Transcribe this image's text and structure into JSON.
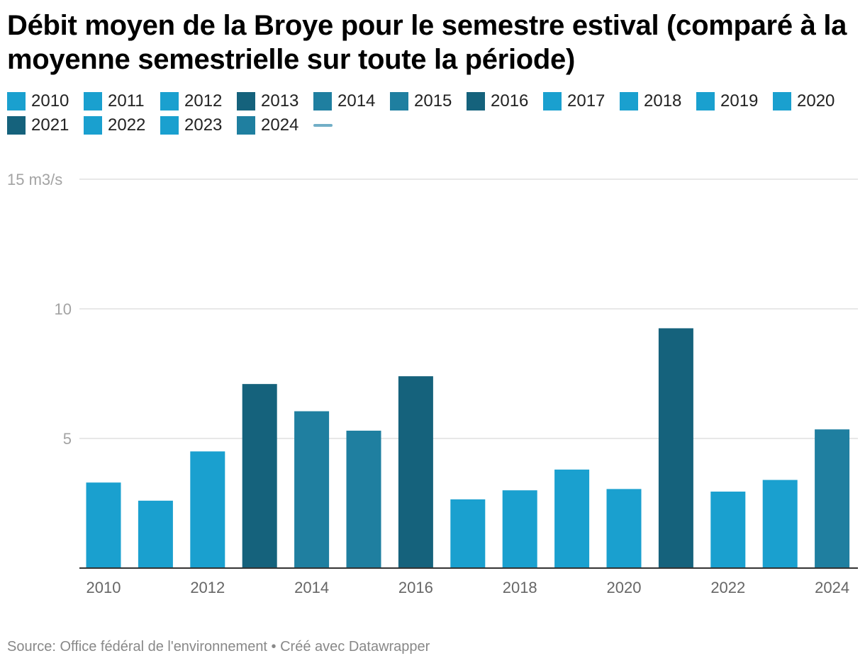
{
  "title": "Débit moyen de la Broye pour le semestre estival (comparé à la moyenne semestrielle sur toute la période)",
  "source": "Source: Office fédéral de l'environnement • Créé avec Datawrapper",
  "colors": {
    "light": "#1aa0cf",
    "medium": "#1f7fa0",
    "dark": "#15627c",
    "mean_line": "#72afc7"
  },
  "legend": [
    {
      "label": "2010",
      "color": "#1aa0cf"
    },
    {
      "label": "2011",
      "color": "#1aa0cf"
    },
    {
      "label": "2012",
      "color": "#1aa0cf"
    },
    {
      "label": "2013",
      "color": "#15627c"
    },
    {
      "label": "2014",
      "color": "#1f7fa0"
    },
    {
      "label": "2015",
      "color": "#1f7fa0"
    },
    {
      "label": "2016",
      "color": "#15627c"
    },
    {
      "label": "2017",
      "color": "#1aa0cf"
    },
    {
      "label": "2018",
      "color": "#1aa0cf"
    },
    {
      "label": "2019",
      "color": "#1aa0cf"
    },
    {
      "label": "2020",
      "color": "#1aa0cf"
    },
    {
      "label": "2021",
      "color": "#15627c"
    },
    {
      "label": "2022",
      "color": "#1aa0cf"
    },
    {
      "label": "2023",
      "color": "#1aa0cf"
    },
    {
      "label": "2024",
      "color": "#1f7fa0"
    }
  ],
  "chart_data": {
    "type": "bar",
    "title": "Débit moyen de la Broye pour le semestre estival (comparé à la moyenne semestrielle sur toute la période)",
    "ylabel": "m3/s",
    "ylim": [
      0,
      15
    ],
    "yticks": [
      {
        "value": 15,
        "label": "15 m3/s"
      },
      {
        "value": 10,
        "label": "10"
      },
      {
        "value": 5,
        "label": "5"
      }
    ],
    "categories": [
      "2010",
      "2011",
      "2012",
      "2013",
      "2014",
      "2015",
      "2016",
      "2017",
      "2018",
      "2019",
      "2020",
      "2021",
      "2022",
      "2023",
      "2024"
    ],
    "values": [
      3.3,
      2.6,
      4.5,
      7.1,
      6.05,
      5.3,
      7.4,
      2.65,
      3.0,
      3.8,
      3.05,
      9.25,
      2.95,
      3.4,
      5.35
    ],
    "bar_colors": [
      "#1aa0cf",
      "#1aa0cf",
      "#1aa0cf",
      "#15627c",
      "#1f7fa0",
      "#1f7fa0",
      "#15627c",
      "#1aa0cf",
      "#1aa0cf",
      "#1aa0cf",
      "#1aa0cf",
      "#15627c",
      "#1aa0cf",
      "#1aa0cf",
      "#1f7fa0"
    ],
    "xtick_labels": [
      "2010",
      "2012",
      "2014",
      "2016",
      "2018",
      "2020",
      "2022",
      "2024"
    ],
    "grid": true
  }
}
